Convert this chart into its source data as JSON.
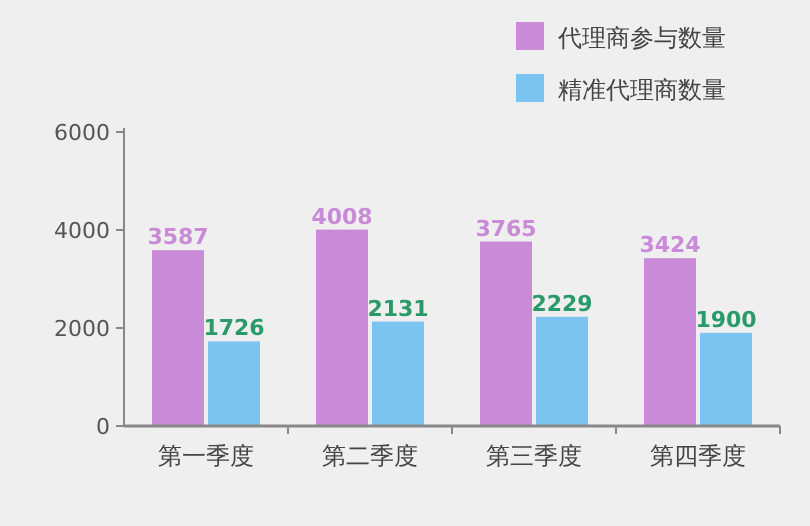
{
  "chart_data": {
    "type": "bar",
    "categories": [
      "第一季度",
      "第二季度",
      "第三季度",
      "第四季度"
    ],
    "series": [
      {
        "name": "代理商参与数量",
        "color": "#c98ad8",
        "values": [
          3587,
          4008,
          3765,
          3424
        ]
      },
      {
        "name": "精准代理商数量",
        "color": "#7cc4f0",
        "values": [
          1726,
          2131,
          2229,
          1900
        ]
      }
    ],
    "ylim": [
      0,
      6000
    ],
    "yticks": [
      0,
      2000,
      4000,
      6000
    ],
    "grid": false,
    "legend": "top right",
    "data_labels": true
  }
}
